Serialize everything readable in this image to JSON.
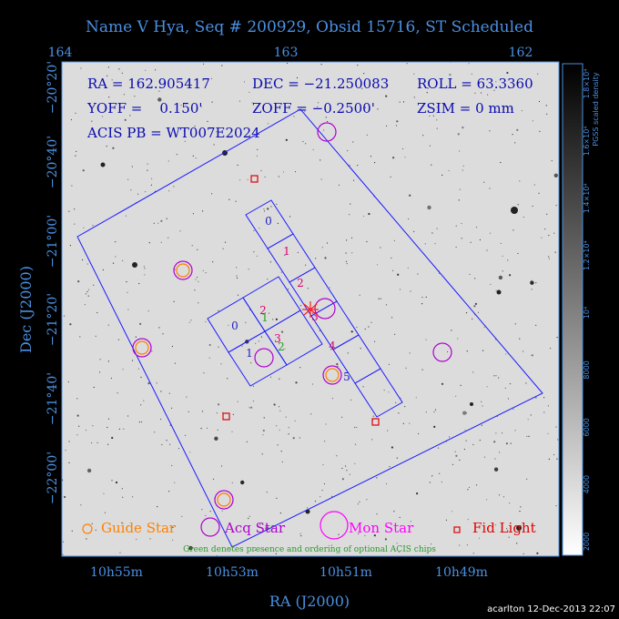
{
  "title": "Name V Hya, Seq # 200929, Obsid 15716, ST Scheduled",
  "footer": "acarlton 12-Dec-2013 22:07",
  "info": {
    "ra": "RA = 162.905417",
    "dec": "DEC = −21.250083",
    "roll": "ROLL = 63.3360",
    "yoff": "YOFF =    0.150'",
    "zoff": "ZOFF = −0.2500'",
    "zsim": "ZSIM = 0 mm",
    "acis_pb": "ACIS PB = WT007E2024"
  },
  "legend": {
    "guide": "Guide Star",
    "acq": "Acq Star",
    "mon": "Mon Star",
    "fid": "Fid Light",
    "note": "Green denotes presence and ordering of optional ACIS chips"
  },
  "colorbar": {
    "title": "PGSS scaled density",
    "ticks": [
      "2000",
      "4000",
      "6000",
      "8000",
      "10⁴",
      "1.2×10⁴",
      "1.4×10⁴",
      "1.6×10⁴",
      "1.8×10⁴"
    ]
  },
  "colors": {
    "background": "#000000",
    "axis_text": "#4a90e2",
    "field_outline": "#1a1aff",
    "guide": "#ff8000",
    "acq": "#b000d0",
    "mon": "#ff00ff",
    "fid": "#e00000",
    "chip_required": "#e0006a",
    "chip_optional": "#20a020",
    "chip_id": "#2020c0"
  },
  "chart_data": {
    "type": "sky_map",
    "title": "Name V Hya, Seq # 200929, Obsid 15716, ST Scheduled",
    "xlabel": "RA (J2000)",
    "ylabel": "Dec (J2000)",
    "x_ticks_bottom": [
      "10h55m",
      "10h53m",
      "10h51m",
      "10h49m"
    ],
    "x_ticks_top": [
      "164",
      "163",
      "162"
    ],
    "y_ticks": [
      "−20°20'",
      "−20°40'",
      "−21°00'",
      "−21°20'",
      "−21°40'",
      "−22°00'"
    ],
    "guide_stars": 0,
    "acq_stars": 6,
    "mon_stars": 0,
    "fid_lights": 3,
    "acis_i_chips": [
      "0",
      "1",
      "2",
      "3"
    ],
    "acis_s_chips": [
      "0",
      "1",
      "2",
      "3",
      "4",
      "5"
    ],
    "required_chip_labels": [
      "2",
      "3",
      "1",
      "2",
      "3",
      "4"
    ],
    "optional_chip_labels": [
      "1",
      "2"
    ]
  }
}
